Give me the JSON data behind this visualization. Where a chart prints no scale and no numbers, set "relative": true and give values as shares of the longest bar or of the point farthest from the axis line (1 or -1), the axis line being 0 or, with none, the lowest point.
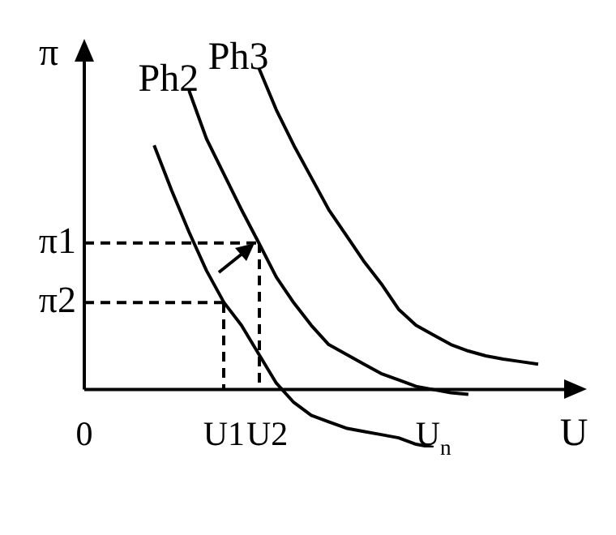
{
  "chart_data": {
    "type": "line",
    "xlabel": "U",
    "ylabel": "π",
    "relative": true,
    "categories": [
      "0",
      null,
      null,
      null,
      null,
      null,
      null,
      null,
      "U1",
      null,
      "U2",
      null,
      null,
      null,
      null,
      null,
      null,
      null,
      null,
      null,
      "U$_{n}$",
      null,
      null,
      null,
      null,
      null,
      null
    ],
    "legend": false,
    "marker": "none",
    "series": [
      {
        "color": "#000000",
        "values": [
          null,
          null,
          null,
          null,
          0.76,
          0.62,
          0.49,
          0.37,
          0.271,
          0.2,
          0.11,
          0.02,
          -0.04,
          -0.08,
          -0.1,
          -0.12,
          -0.13,
          -0.14,
          -0.15,
          -0.17,
          -0.18,
          null,
          null,
          null,
          null,
          null,
          null
        ]
      },
      {
        "name": "Ph2",
        "color": "#000000",
        "values": [
          null,
          null,
          null,
          null,
          null,
          null,
          0.93,
          0.78,
          0.67,
          0.56,
          0.456,
          0.35,
          0.27,
          0.2,
          0.14,
          0.11,
          0.08,
          0.05,
          0.03,
          0.01,
          0,
          -0.01,
          -0.015,
          null,
          null,
          null,
          null
        ]
      },
      {
        "name": "Ph3",
        "color": "#000000",
        "values": [
          null,
          null,
          null,
          null,
          null,
          null,
          null,
          null,
          null,
          null,
          1,
          0.87,
          0.76,
          0.66,
          0.56,
          0.48,
          0.4,
          0.33,
          0.25,
          0.2,
          0.17,
          0.14,
          0.12,
          0.105,
          0.095,
          0.087,
          0.079
        ]
      },
      {
        "name": "π1",
        "color": "#000000",
        "line_style": "dashed",
        "values": [
          0.456,
          0.456,
          0.456,
          0.456,
          0.456,
          0.456,
          0.456,
          0.456,
          0.456,
          0.456,
          0.456,
          null,
          null,
          null,
          null,
          null,
          null,
          null,
          null,
          null,
          null,
          null,
          null,
          null,
          null,
          null,
          null
        ]
      },
      {
        "name": "π2",
        "color": "#000000",
        "line_style": "dashed",
        "values": [
          0.271,
          0.271,
          0.271,
          0.271,
          0.271,
          0.271,
          0.271,
          0.271,
          0.271,
          null,
          null,
          null,
          null,
          null,
          null,
          null,
          null,
          null,
          null,
          null,
          null,
          null,
          null,
          null,
          null,
          null,
          null
        ]
      }
    ]
  }
}
